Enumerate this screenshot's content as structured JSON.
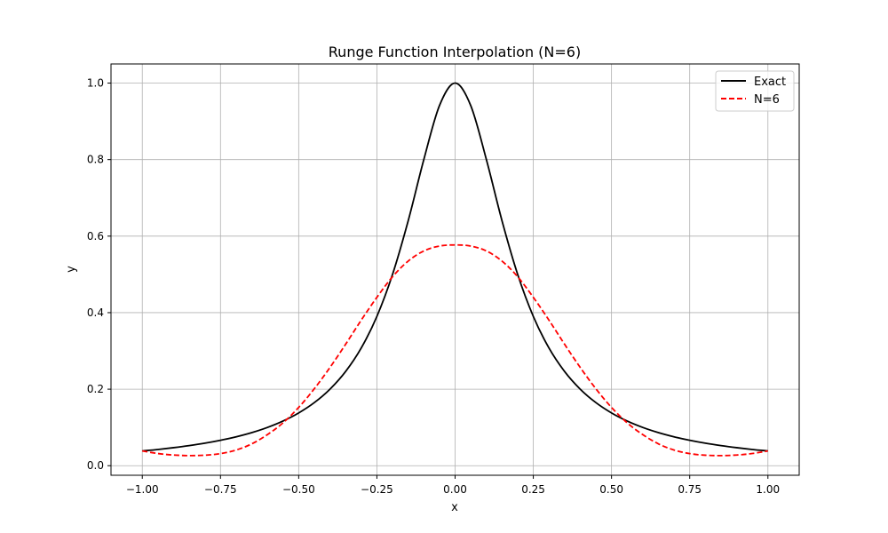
{
  "chart_data": {
    "type": "line",
    "title": "Runge Function Interpolation (N=6)",
    "xlabel": "x",
    "ylabel": "y",
    "xlim": [
      -1.1,
      1.1
    ],
    "ylim": [
      -0.025,
      1.05
    ],
    "xticks": [
      -1.0,
      -0.75,
      -0.5,
      -0.25,
      0.0,
      0.25,
      0.5,
      0.75,
      1.0
    ],
    "xtick_labels": [
      "−1.00",
      "−0.75",
      "−0.50",
      "−0.25",
      "0.00",
      "0.25",
      "0.50",
      "0.75",
      "1.00"
    ],
    "yticks": [
      0.0,
      0.2,
      0.4,
      0.6,
      0.8,
      1.0
    ],
    "ytick_labels": [
      "0.0",
      "0.2",
      "0.4",
      "0.6",
      "0.8",
      "1.0"
    ],
    "grid": true,
    "legend_position": "top-right",
    "series": [
      {
        "name": "Exact",
        "color": "#000000",
        "dash": "solid",
        "x": [
          -1.0,
          -0.95,
          -0.9,
          -0.85,
          -0.8,
          -0.75,
          -0.7,
          -0.65,
          -0.6,
          -0.55,
          -0.5,
          -0.45,
          -0.4,
          -0.35,
          -0.3,
          -0.25,
          -0.2,
          -0.15,
          -0.1,
          -0.05,
          0.0,
          0.05,
          0.1,
          0.15,
          0.2,
          0.25,
          0.3,
          0.35,
          0.4,
          0.45,
          0.5,
          0.55,
          0.6,
          0.65,
          0.7,
          0.75,
          0.8,
          0.85,
          0.9,
          0.95,
          1.0
        ],
        "y": [
          0.0385,
          0.0424,
          0.0471,
          0.0525,
          0.0588,
          0.0664,
          0.0755,
          0.0865,
          0.1,
          0.1168,
          0.1379,
          0.1649,
          0.2,
          0.2462,
          0.3077,
          0.3902,
          0.5,
          0.64,
          0.8,
          0.9412,
          1.0,
          0.9412,
          0.8,
          0.64,
          0.5,
          0.3902,
          0.3077,
          0.2462,
          0.2,
          0.1649,
          0.1379,
          0.1168,
          0.1,
          0.0865,
          0.0755,
          0.0664,
          0.0588,
          0.0525,
          0.0471,
          0.0424,
          0.0385
        ]
      },
      {
        "name": "N=6",
        "color": "#ff0000",
        "dash": "dashed",
        "x": [
          -1.0,
          -0.95,
          -0.9,
          -0.85,
          -0.8,
          -0.75,
          -0.7,
          -0.65,
          -0.6,
          -0.55,
          -0.5,
          -0.45,
          -0.4,
          -0.35,
          -0.3,
          -0.25,
          -0.2,
          -0.15,
          -0.1,
          -0.05,
          0.0,
          0.05,
          0.1,
          0.15,
          0.2,
          0.25,
          0.3,
          0.35,
          0.4,
          0.45,
          0.5,
          0.55,
          0.6,
          0.65,
          0.7,
          0.75,
          0.8,
          0.85,
          0.9,
          0.95,
          1.0
        ],
        "y": [
          0.0385,
          0.0318,
          0.0279,
          0.0264,
          0.0274,
          0.0316,
          0.0409,
          0.0571,
          0.0811,
          0.1121,
          0.1523,
          0.2011,
          0.2567,
          0.3174,
          0.3805,
          0.4401,
          0.4939,
          0.5348,
          0.5613,
          0.5741,
          0.5769,
          0.5741,
          0.5613,
          0.5348,
          0.4939,
          0.4401,
          0.3805,
          0.3174,
          0.2567,
          0.2011,
          0.1523,
          0.1121,
          0.0811,
          0.0571,
          0.0409,
          0.0316,
          0.0274,
          0.0264,
          0.0279,
          0.0318,
          0.0385
        ]
      }
    ]
  }
}
